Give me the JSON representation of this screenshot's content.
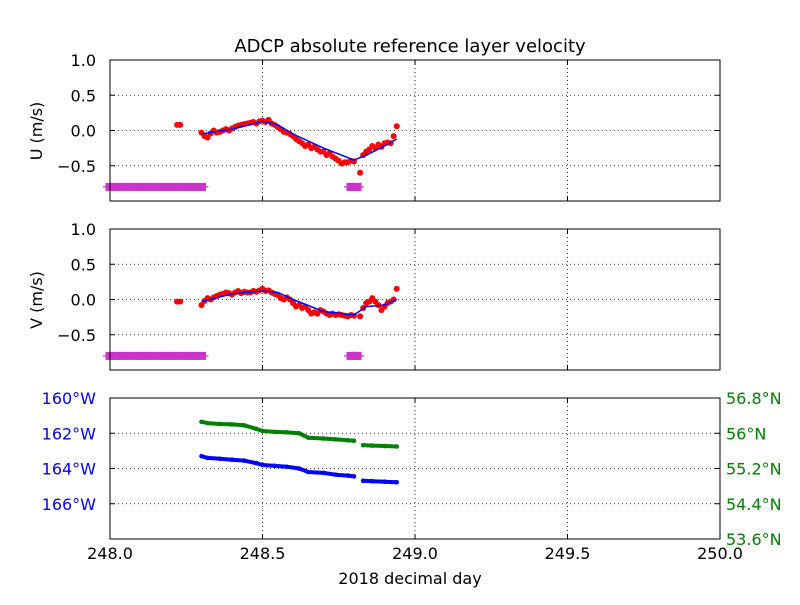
{
  "title": "ADCP absolute reference layer velocity",
  "xlabel": "2018 decimal day",
  "chart_data": [
    {
      "type": "scatter",
      "title": "ADCP absolute reference layer velocity",
      "ylabel": "U (m/s)",
      "xlim": [
        248.0,
        250.0
      ],
      "ylim": [
        -1.0,
        1.0
      ],
      "xticks": [
        "248.0",
        "248.5",
        "249.0",
        "249.5",
        "250.0"
      ],
      "yticks": [
        {
          "v": 1.0,
          "label": "1.0"
        },
        {
          "v": 0.5,
          "label": "0.5"
        },
        {
          "v": 0.0,
          "label": "0.0"
        },
        {
          "v": -0.5,
          "label": "−0.5"
        }
      ],
      "grid": true,
      "series": [
        {
          "name": "",
          "color": "#ff0000",
          "marker": "dot",
          "x": [
            248.22,
            248.23,
            248.3,
            248.31,
            248.32,
            248.33,
            248.34,
            248.35,
            248.36,
            248.37,
            248.38,
            248.39,
            248.4,
            248.41,
            248.42,
            248.43,
            248.44,
            248.45,
            248.46,
            248.47,
            248.48,
            248.49,
            248.5,
            248.51,
            248.52,
            248.53,
            248.54,
            248.55,
            248.56,
            248.57,
            248.58,
            248.59,
            248.6,
            248.61,
            248.62,
            248.63,
            248.64,
            248.65,
            248.66,
            248.67,
            248.68,
            248.69,
            248.7,
            248.71,
            248.72,
            248.73,
            248.74,
            248.75,
            248.76,
            248.77,
            248.78,
            248.79,
            248.8,
            248.82,
            248.83,
            248.84,
            248.85,
            248.86,
            248.87,
            248.88,
            248.89,
            248.9,
            248.91,
            248.92,
            248.93,
            248.94
          ],
          "y": [
            0.08,
            0.08,
            -0.03,
            -0.08,
            -0.1,
            -0.04,
            0.0,
            -0.03,
            -0.02,
            0.0,
            0.02,
            0.0,
            0.03,
            0.05,
            0.07,
            0.08,
            0.09,
            0.1,
            0.11,
            0.12,
            0.1,
            0.13,
            0.14,
            0.12,
            0.15,
            0.1,
            0.08,
            0.05,
            0.02,
            -0.02,
            -0.03,
            -0.05,
            -0.08,
            -0.12,
            -0.15,
            -0.18,
            -0.22,
            -0.2,
            -0.25,
            -0.23,
            -0.27,
            -0.3,
            -0.3,
            -0.35,
            -0.32,
            -0.37,
            -0.4,
            -0.43,
            -0.47,
            -0.45,
            -0.45,
            -0.43,
            -0.44,
            -0.6,
            -0.35,
            -0.3,
            -0.27,
            -0.22,
            -0.25,
            -0.2,
            -0.23,
            -0.18,
            -0.17,
            -0.18,
            -0.08,
            0.06
          ]
        },
        {
          "name": "",
          "color": "#0000ff",
          "marker": "line",
          "x": [
            248.3,
            248.4,
            248.5,
            248.55,
            248.6,
            248.7,
            248.8,
            248.84,
            248.9,
            248.94
          ],
          "y": [
            -0.05,
            0.02,
            0.13,
            0.08,
            -0.05,
            -0.25,
            -0.42,
            -0.35,
            -0.22,
            -0.12
          ]
        },
        {
          "name": "",
          "color": "#cc33cc",
          "marker": "plus",
          "x": [
            248.0,
            248.02,
            248.04,
            248.06,
            248.08,
            248.1,
            248.12,
            248.14,
            248.16,
            248.18,
            248.2,
            248.22,
            248.24,
            248.26,
            248.28,
            248.3,
            248.79,
            248.8,
            248.81
          ],
          "y": [
            -0.8,
            -0.8,
            -0.8,
            -0.8,
            -0.8,
            -0.8,
            -0.8,
            -0.8,
            -0.8,
            -0.8,
            -0.8,
            -0.8,
            -0.8,
            -0.8,
            -0.8,
            -0.8,
            -0.8,
            -0.8,
            -0.8
          ]
        }
      ]
    },
    {
      "type": "scatter",
      "ylabel": "V (m/s)",
      "xlim": [
        248.0,
        250.0
      ],
      "ylim": [
        -1.0,
        1.0
      ],
      "xticks": [
        "248.0",
        "248.5",
        "249.0",
        "249.5",
        "250.0"
      ],
      "yticks": [
        {
          "v": 1.0,
          "label": "1.0"
        },
        {
          "v": 0.5,
          "label": "0.5"
        },
        {
          "v": 0.0,
          "label": "0.0"
        },
        {
          "v": -0.5,
          "label": "−0.5"
        }
      ],
      "grid": true,
      "series": [
        {
          "name": "",
          "color": "#ff0000",
          "marker": "dot",
          "x": [
            248.22,
            248.23,
            248.3,
            248.31,
            248.32,
            248.33,
            248.34,
            248.35,
            248.36,
            248.37,
            248.38,
            248.39,
            248.4,
            248.41,
            248.42,
            248.43,
            248.44,
            248.45,
            248.46,
            248.47,
            248.48,
            248.49,
            248.5,
            248.51,
            248.52,
            248.53,
            248.54,
            248.55,
            248.56,
            248.57,
            248.58,
            248.59,
            248.6,
            248.61,
            248.62,
            248.63,
            248.64,
            248.65,
            248.66,
            248.67,
            248.68,
            248.69,
            248.7,
            248.71,
            248.72,
            248.73,
            248.74,
            248.75,
            248.76,
            248.77,
            248.78,
            248.79,
            248.8,
            248.82,
            248.83,
            248.84,
            248.85,
            248.86,
            248.87,
            248.88,
            248.89,
            248.9,
            248.91,
            248.92,
            248.93,
            248.94
          ],
          "y": [
            -0.03,
            -0.03,
            -0.08,
            -0.02,
            0.02,
            0.0,
            0.03,
            0.05,
            0.07,
            0.08,
            0.1,
            0.09,
            0.07,
            0.1,
            0.12,
            0.09,
            0.11,
            0.1,
            0.1,
            0.12,
            0.11,
            0.13,
            0.15,
            0.12,
            0.13,
            0.1,
            0.08,
            0.06,
            0.02,
            0.0,
            0.03,
            0.0,
            -0.05,
            -0.1,
            -0.08,
            -0.12,
            -0.1,
            -0.15,
            -0.2,
            -0.18,
            -0.2,
            -0.15,
            -0.17,
            -0.2,
            -0.22,
            -0.2,
            -0.22,
            -0.21,
            -0.22,
            -0.23,
            -0.24,
            -0.22,
            -0.23,
            -0.24,
            -0.12,
            -0.05,
            -0.03,
            0.02,
            -0.03,
            -0.08,
            -0.15,
            -0.1,
            -0.05,
            -0.03,
            0.0,
            0.15
          ]
        },
        {
          "name": "",
          "color": "#0000ff",
          "marker": "line",
          "x": [
            248.3,
            248.4,
            248.5,
            248.55,
            248.6,
            248.7,
            248.8,
            248.84,
            248.9,
            248.94
          ],
          "y": [
            -0.03,
            0.08,
            0.12,
            0.1,
            0.0,
            -0.17,
            -0.22,
            -0.1,
            -0.08,
            0.0
          ]
        },
        {
          "name": "",
          "color": "#cc33cc",
          "marker": "plus",
          "x": [
            248.0,
            248.02,
            248.04,
            248.06,
            248.08,
            248.1,
            248.12,
            248.14,
            248.16,
            248.18,
            248.2,
            248.22,
            248.24,
            248.26,
            248.28,
            248.3,
            248.79,
            248.8,
            248.81
          ],
          "y": [
            -0.8,
            -0.8,
            -0.8,
            -0.8,
            -0.8,
            -0.8,
            -0.8,
            -0.8,
            -0.8,
            -0.8,
            -0.8,
            -0.8,
            -0.8,
            -0.8,
            -0.8,
            -0.8,
            -0.8,
            -0.8,
            -0.8
          ]
        }
      ]
    },
    {
      "type": "line",
      "xlim": [
        248.0,
        250.0
      ],
      "xticks": [
        "248.0",
        "248.5",
        "249.0",
        "249.5",
        "250.0"
      ],
      "xlabel": "2018 decimal day",
      "grid": true,
      "left_axis": {
        "color": "#0000ff",
        "lim": [
          -168,
          -160
        ],
        "ticks": [
          {
            "v": -160,
            "label": "160°W"
          },
          {
            "v": -162,
            "label": "162°W"
          },
          {
            "v": -164,
            "label": "164°W"
          },
          {
            "v": -166,
            "label": "166°W"
          }
        ]
      },
      "right_axis": {
        "color": "#008000",
        "lim": [
          53.6,
          56.8
        ],
        "ticks": [
          {
            "v": 56.8,
            "label": "56.8°N"
          },
          {
            "v": 56.0,
            "label": "56°N"
          },
          {
            "v": 55.2,
            "label": "55.2°N"
          },
          {
            "v": 54.4,
            "label": "54.4°N"
          },
          {
            "v": 53.6,
            "label": "53.6°N"
          }
        ]
      },
      "series": [
        {
          "name": "",
          "axis": "left",
          "color": "#0000ff",
          "segments": [
            {
              "x": [
                248.3,
                248.32,
                248.36,
                248.4,
                248.44,
                248.48,
                248.5,
                248.54,
                248.58,
                248.62,
                248.65,
                248.7,
                248.74,
                248.78,
                248.8
              ],
              "y": [
                -163.3,
                -163.4,
                -163.45,
                -163.5,
                -163.55,
                -163.7,
                -163.8,
                -163.85,
                -163.9,
                -164.0,
                -164.2,
                -164.25,
                -164.35,
                -164.4,
                -164.45
              ]
            },
            {
              "x": [
                248.83,
                248.86,
                248.9,
                248.94
              ],
              "y": [
                -164.7,
                -164.72,
                -164.75,
                -164.78
              ]
            }
          ]
        },
        {
          "name": "",
          "axis": "right",
          "color": "#008000",
          "segments": [
            {
              "x": [
                248.3,
                248.32,
                248.36,
                248.4,
                248.44,
                248.48,
                248.5,
                248.54,
                248.58,
                248.62,
                248.65,
                248.7,
                248.74,
                248.78,
                248.8
              ],
              "y": [
                56.26,
                56.23,
                56.21,
                56.2,
                56.18,
                56.1,
                56.05,
                56.03,
                56.02,
                56.0,
                55.9,
                55.88,
                55.86,
                55.84,
                55.83
              ]
            },
            {
              "x": [
                248.83,
                248.86,
                248.9,
                248.94
              ],
              "y": [
                55.73,
                55.72,
                55.71,
                55.7
              ]
            }
          ]
        }
      ]
    }
  ]
}
